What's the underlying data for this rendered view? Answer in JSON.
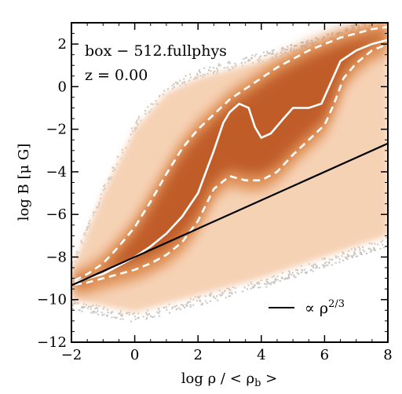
{
  "chart_data": {
    "type": "heatmap",
    "annotations": {
      "box_label": "box − 512.fullphys",
      "redshift": "z = 0.00"
    },
    "xlabel": "log ρ / < ρb >",
    "ylabel": "log B [μ G]",
    "xlim": [
      -2,
      8
    ],
    "ylim": [
      -12,
      3
    ],
    "x_ticks": [
      -2,
      0,
      2,
      4,
      6,
      8
    ],
    "x_tick_labels": [
      "−2",
      "0",
      "2",
      "4",
      "6",
      "8"
    ],
    "y_ticks": [
      -12,
      -10,
      -8,
      -6,
      -4,
      -2,
      0,
      2
    ],
    "y_tick_labels": [
      "−12",
      "−10",
      "−8",
      "−6",
      "−4",
      "−2",
      "0",
      "2"
    ],
    "legend": {
      "placement": "bottom-right",
      "entries": [
        {
          "label": "∝ ρ2/3",
          "style": "solid-black"
        }
      ]
    },
    "distribution": {
      "lower_edge": [
        [
          -2.0,
          -10.0
        ],
        [
          0.0,
          -10.6
        ],
        [
          2.0,
          -9.8
        ],
        [
          4.0,
          -9.0
        ],
        [
          6.0,
          -8.0
        ],
        [
          8.0,
          -7.0
        ]
      ],
      "upper_edge": [
        [
          -2.0,
          -8.6
        ],
        [
          -1.0,
          -5.0
        ],
        [
          0.0,
          -2.0
        ],
        [
          1.0,
          -0.3
        ],
        [
          2.0,
          0.4
        ],
        [
          4.0,
          1.2
        ],
        [
          6.0,
          2.0
        ],
        [
          7.0,
          2.6
        ],
        [
          8.0,
          2.9
        ]
      ]
    },
    "series": [
      {
        "role": "median",
        "style": "solid-white",
        "x": [
          -1.9,
          -1.5,
          -1.0,
          -0.5,
          0.0,
          0.5,
          1.0,
          1.5,
          2.0,
          2.5,
          2.8,
          3.0,
          3.3,
          3.6,
          3.8,
          4.0,
          4.3,
          4.7,
          5.0,
          5.5,
          5.9,
          6.2,
          6.5,
          7.0,
          7.5,
          8.0
        ],
        "y": [
          -9.2,
          -9.0,
          -8.8,
          -8.4,
          -8.0,
          -7.5,
          -6.9,
          -6.1,
          -5.0,
          -3.0,
          -1.7,
          -1.2,
          -0.8,
          -1.0,
          -1.9,
          -2.4,
          -2.2,
          -1.5,
          -1.0,
          -1.0,
          -0.8,
          0.2,
          1.2,
          1.7,
          2.0,
          2.2
        ]
      },
      {
        "role": "upper-percentile",
        "style": "dashed-white",
        "x": [
          -1.9,
          -1.5,
          -1.0,
          -0.5,
          0.0,
          0.5,
          1.0,
          1.5,
          2.0,
          2.5,
          3.0,
          3.5,
          4.0,
          4.5,
          5.0,
          5.5,
          6.0,
          6.5,
          7.0,
          7.5,
          8.0
        ],
        "y": [
          -9.1,
          -8.8,
          -8.3,
          -7.5,
          -6.6,
          -5.4,
          -4.1,
          -2.9,
          -2.0,
          -1.3,
          -0.6,
          -0.1,
          0.4,
          0.9,
          1.3,
          1.7,
          2.0,
          2.3,
          2.5,
          2.7,
          2.8
        ]
      },
      {
        "role": "lower-percentile",
        "style": "dashed-white",
        "x": [
          -1.9,
          -1.5,
          -1.0,
          -0.5,
          0.0,
          0.5,
          1.0,
          1.5,
          2.0,
          2.5,
          3.0,
          3.5,
          4.0,
          4.5,
          5.0,
          5.5,
          6.0,
          6.3,
          6.6,
          7.0,
          7.5,
          8.0
        ],
        "y": [
          -9.3,
          -9.2,
          -9.0,
          -8.8,
          -8.6,
          -8.3,
          -7.9,
          -7.3,
          -6.3,
          -4.8,
          -4.2,
          -4.4,
          -4.4,
          -4.0,
          -3.2,
          -2.5,
          -1.8,
          -0.8,
          0.4,
          1.1,
          1.7,
          2.0
        ]
      },
      {
        "role": "power-law",
        "label": "∝ ρ2/3",
        "style": "solid-black",
        "x": [
          -2.0,
          8.0
        ],
        "y": [
          -9.33,
          -2.67
        ]
      }
    ],
    "colors": {
      "density_dark": "#b8501c",
      "density_mid": "#dd8a4e",
      "density_light": "#f6d2b5",
      "scatter": "#c8c4c0",
      "median": "#ffffff",
      "power_law": "#000000"
    }
  }
}
